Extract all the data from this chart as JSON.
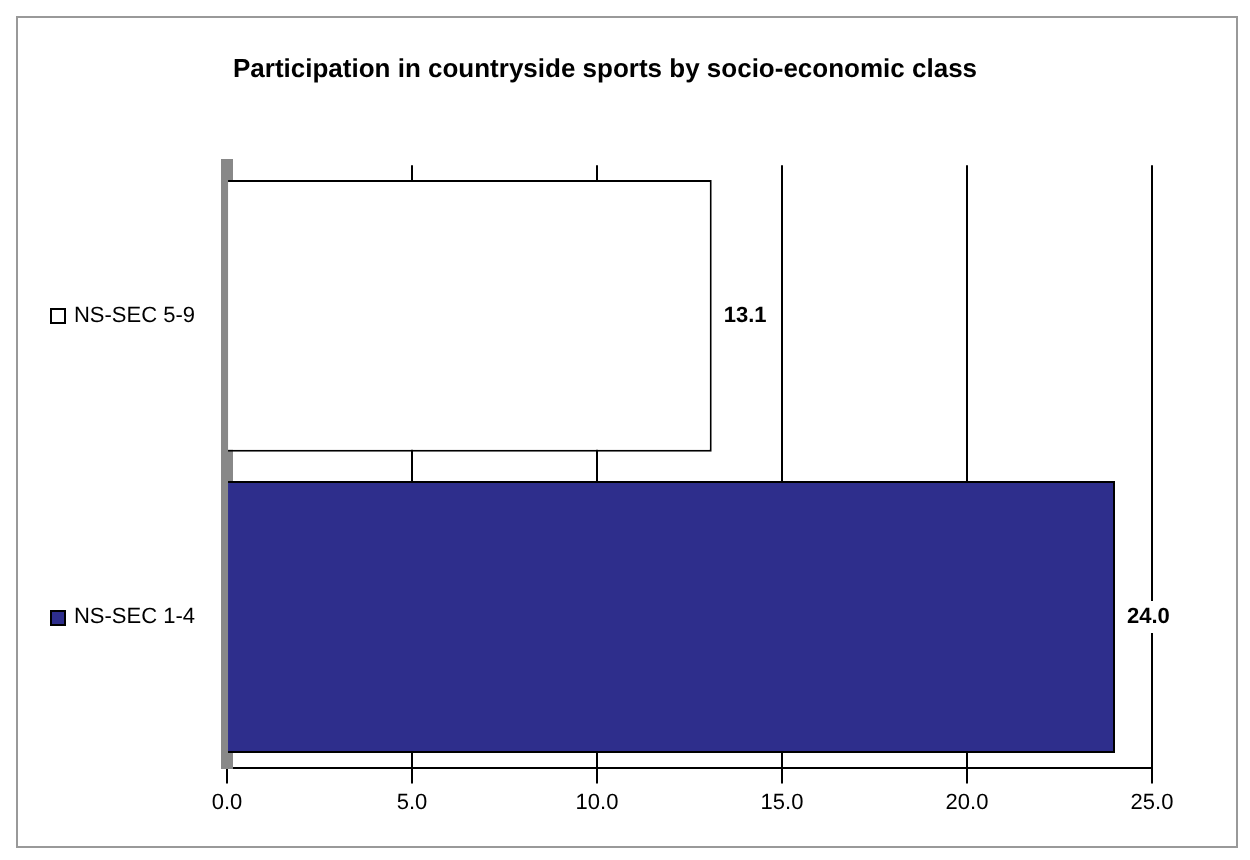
{
  "chart_data": {
    "type": "bar",
    "orientation": "horizontal",
    "title": "Participation in countryside sports by socio-economic class",
    "categories": [
      "NS-SEC 5-9",
      "NS-SEC 1-4"
    ],
    "values": [
      13.1,
      24.0
    ],
    "colors": [
      "#ffffff",
      "#2e2e8c"
    ],
    "value_labels": [
      "13.1",
      "24.0"
    ],
    "xlim": [
      0,
      25
    ],
    "xticks": [
      {
        "value": 0,
        "label": "0.0"
      },
      {
        "value": 5,
        "label": "5.0"
      },
      {
        "value": 10,
        "label": "10.0"
      },
      {
        "value": 15,
        "label": "15.0"
      },
      {
        "value": 20,
        "label": "20.0"
      },
      {
        "value": 25,
        "label": "25.0"
      }
    ],
    "grid": "x",
    "legend": false
  }
}
